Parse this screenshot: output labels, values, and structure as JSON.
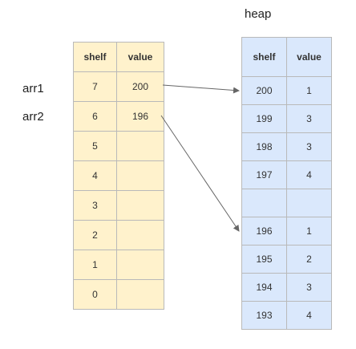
{
  "heap_title": "heap",
  "var_labels": [
    "arr1",
    "arr2"
  ],
  "stack": {
    "headers": [
      "shelf",
      "value"
    ],
    "rows": [
      {
        "shelf": "7",
        "value": "200"
      },
      {
        "shelf": "6",
        "value": "196"
      },
      {
        "shelf": "5",
        "value": ""
      },
      {
        "shelf": "4",
        "value": ""
      },
      {
        "shelf": "3",
        "value": ""
      },
      {
        "shelf": "2",
        "value": ""
      },
      {
        "shelf": "1",
        "value": ""
      },
      {
        "shelf": "0",
        "value": ""
      }
    ]
  },
  "heap": {
    "headers": [
      "shelf",
      "value"
    ],
    "rows": [
      {
        "shelf": "200",
        "value": "1"
      },
      {
        "shelf": "199",
        "value": "3"
      },
      {
        "shelf": "198",
        "value": "3"
      },
      {
        "shelf": "197",
        "value": "4"
      },
      {
        "shelf": "",
        "value": ""
      },
      {
        "shelf": "196",
        "value": "1"
      },
      {
        "shelf": "195",
        "value": "2"
      },
      {
        "shelf": "194",
        "value": "3"
      },
      {
        "shelf": "193",
        "value": "4"
      }
    ]
  },
  "colors": {
    "stack_fill": "#fff2cc",
    "heap_fill": "#dae8fc",
    "arrow": "#666666"
  }
}
